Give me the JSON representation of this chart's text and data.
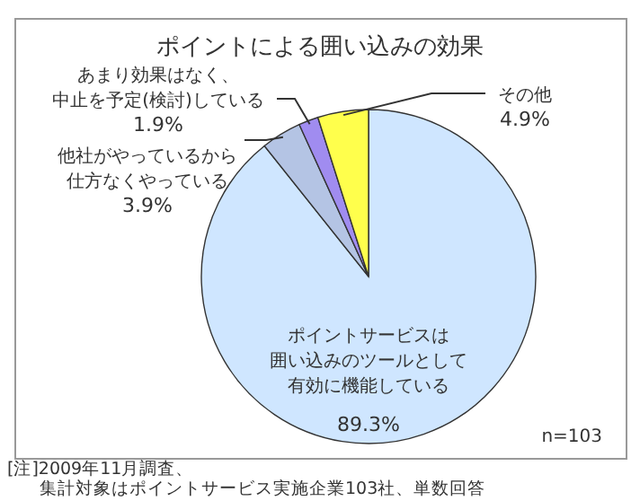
{
  "chart_data": {
    "type": "pie",
    "title": "ポイントによる囲い込みの効果",
    "categories": [
      "ポイントサービスは囲い込みのツールとして有効に機能している",
      "他社がやっているから仕方なくやっている",
      "あまり効果はなく、中止を予定(検討)している",
      "その他"
    ],
    "values": [
      89.3,
      3.9,
      1.9,
      4.9
    ],
    "value_labels": [
      "89.3%",
      "3.9%",
      "1.9%",
      "4.9%"
    ],
    "colors": [
      "#cfe6ff",
      "#b4c4e4",
      "#a08cf0",
      "#ffff4c"
    ],
    "annotations": [
      "n=103",
      "[注]2009年11月調査、集計対象はポイントサービス実施企業103社、単数回答"
    ]
  }
}
